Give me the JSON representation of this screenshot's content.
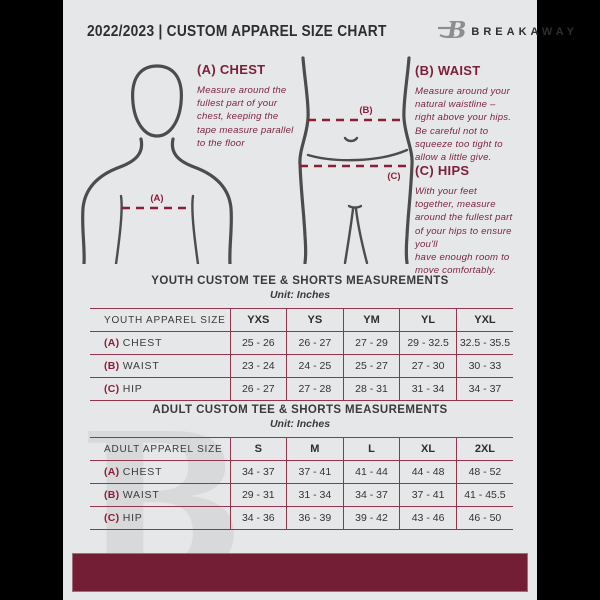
{
  "header": {
    "title": "2022/2023  |  CUSTOM APPAREL SIZE CHART",
    "brand": "BREAKAWAY"
  },
  "guide": {
    "chest": {
      "tag": "(A)",
      "heading": "(A) CHEST",
      "body": "Measure around the\nfullest part of your\nchest, keeping the\ntape measure parallel\nto the floor"
    },
    "waist": {
      "tag": "(B)",
      "heading": "(B) WAIST",
      "body": "Measure around your\nnatural waistline –\nright above your hips.\nBe careful not to\nsqueeze too tight to\nallow a little give."
    },
    "hips": {
      "tag": "(C)",
      "heading": "(C) HIPS",
      "body": "With your feet\ntogether, measure\naround the fullest part\nof your hips to ensure\nyou'll\nhave enough room to\nmove comfortably."
    }
  },
  "youth_table": {
    "title": "YOUTH CUSTOM TEE & SHORTS MEASUREMENTS",
    "unit": "Unit: Inches",
    "columns": [
      "YOUTH APPAREL SIZE",
      "YXS",
      "YS",
      "YM",
      "YL",
      "YXL"
    ],
    "rows": [
      {
        "prefix": "(A)",
        "label": "CHEST",
        "values": [
          "25 - 26",
          "26 - 27",
          "27 - 29",
          "29 - 32.5",
          "32.5 - 35.5"
        ]
      },
      {
        "prefix": "(B)",
        "label": "WAIST",
        "values": [
          "23 - 24",
          "24 - 25",
          "25 - 27",
          "27 - 30",
          "30 - 33"
        ]
      },
      {
        "prefix": "(C)",
        "label": "HIP",
        "values": [
          "26 - 27",
          "27 - 28",
          "28 - 31",
          "31 - 34",
          "34 - 37"
        ]
      }
    ]
  },
  "adult_table": {
    "title": "ADULT CUSTOM TEE & SHORTS MEASUREMENTS",
    "unit": "Unit: Inches",
    "columns": [
      "ADULT APPAREL SIZE",
      "S",
      "M",
      "L",
      "XL",
      "2XL"
    ],
    "rows": [
      {
        "prefix": "(A)",
        "label": "CHEST",
        "values": [
          "34 - 37",
          "37 - 41",
          "41 - 44",
          "44 - 48",
          "48 - 52"
        ]
      },
      {
        "prefix": "(B)",
        "label": "WAIST",
        "values": [
          "29 - 31",
          "31 - 34",
          "34 - 37",
          "37 - 41",
          "41 - 45.5"
        ]
      },
      {
        "prefix": "(C)",
        "label": "HIP",
        "values": [
          "34 - 36",
          "36 - 39",
          "39 - 42",
          "43 - 46",
          "46 - 50"
        ]
      }
    ]
  },
  "watermark_letter": "B",
  "colors": {
    "maroon_heading": "#7c1e38",
    "dashed_line": "#8b1f38",
    "table_line": "#96344e",
    "footer_bar": "#731e35",
    "page_bg": "#e6e7e8",
    "figure_outline": "#4c4c4d",
    "watermark": "#d8d9db"
  }
}
